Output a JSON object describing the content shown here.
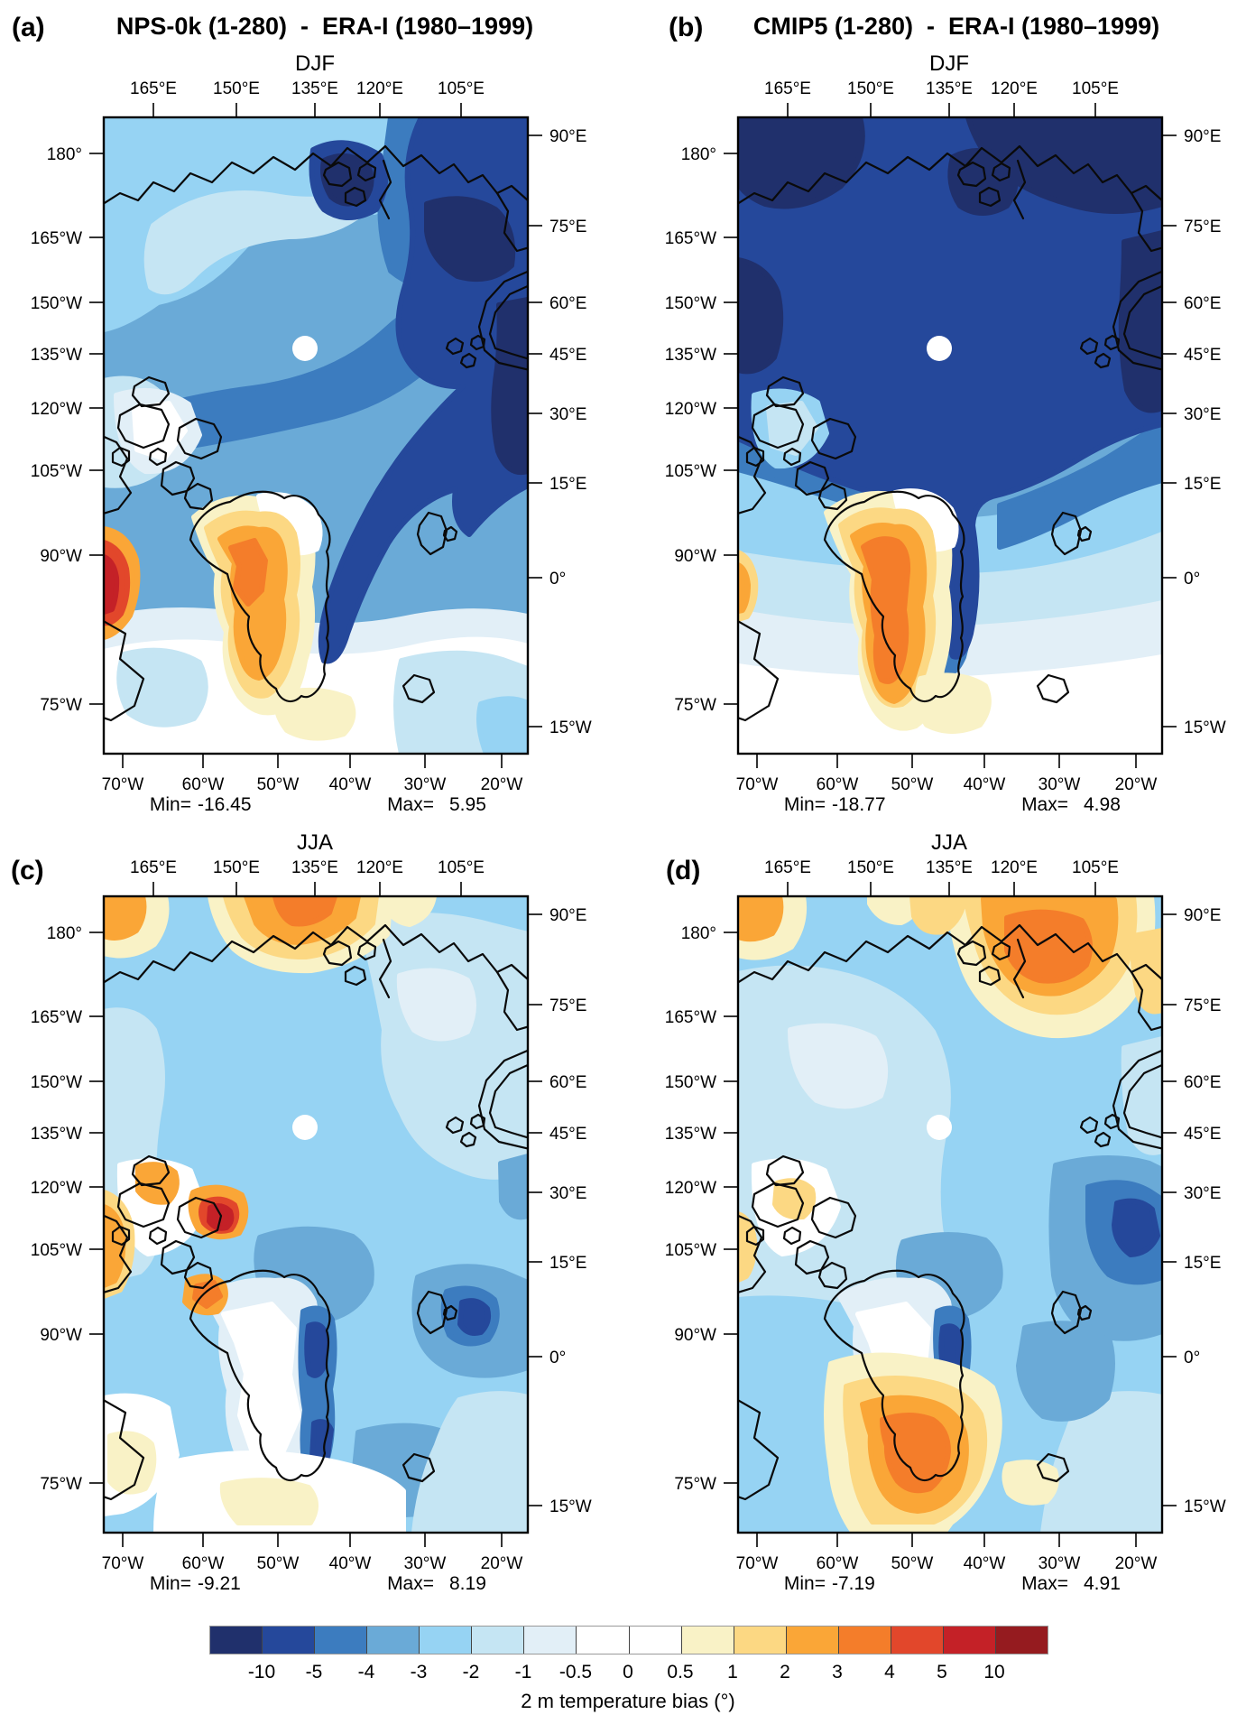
{
  "panels": [
    {
      "id": "a",
      "letter": "(a)",
      "title": "NPS-0k (1-280)  -  ERA-I (1980–1999)",
      "season": "DJF",
      "min_label": "Min=",
      "min_value": "-16.45",
      "max_label": "Max=",
      "max_value": "5.95"
    },
    {
      "id": "b",
      "letter": "(b)",
      "title": "CMIP5 (1-280)  -  ERA-I (1980–1999)",
      "season": "DJF",
      "min_label": "Min=",
      "min_value": "-18.77",
      "max_label": "Max=",
      "max_value": "4.98"
    },
    {
      "id": "c",
      "letter": "(c)",
      "title": "",
      "season": "JJA",
      "min_label": "Min=",
      "min_value": "-9.21",
      "max_label": "Max=",
      "max_value": "8.19"
    },
    {
      "id": "d",
      "letter": "(d)",
      "title": "",
      "season": "JJA",
      "min_label": "Min=",
      "min_value": "-7.19",
      "max_label": "Max=",
      "max_value": "4.91"
    }
  ],
  "axis_labels": {
    "top": [
      "165°E",
      "150°E",
      "135°E",
      "120°E",
      "105°E"
    ],
    "bottom": [
      "70°W",
      "60°W",
      "50°W",
      "40°W",
      "30°W",
      "20°W"
    ],
    "left": [
      "180°",
      "165°W",
      "150°W",
      "135°W",
      "120°W",
      "105°W",
      "90°W",
      "75°W"
    ],
    "right": [
      "90°E",
      "75°E",
      "60°E",
      "45°E",
      "30°E",
      "15°E",
      "0°",
      "15°W"
    ]
  },
  "colorbar": {
    "tick_labels": [
      "-10",
      "-5",
      "-4",
      "-3",
      "-2",
      "-1",
      "-0.5",
      "0",
      "0.5",
      "1",
      "2",
      "3",
      "4",
      "5",
      "10"
    ],
    "colors": [
      "#20306c",
      "#25489b",
      "#3c7cbf",
      "#6aaad7",
      "#96d3f3",
      "#c5e5f3",
      "#e2eff7",
      "#ffffff",
      "#ffffff",
      "#f9f2c6",
      "#fcd883",
      "#faa637",
      "#f47d2a",
      "#e2472b",
      "#c42127",
      "#951b1f"
    ],
    "caption": "2 m temperature bias (°)"
  },
  "chart_data": {
    "type": "heatmap",
    "variable": "2 m temperature bias (°)",
    "projection": "north polar stereographic (rectangular window, white dot marks the pole)",
    "contour_levels": [
      -10,
      -5,
      -4,
      -3,
      -2,
      -1,
      -0.5,
      0,
      0.5,
      1,
      2,
      3,
      4,
      5,
      10
    ],
    "palette": [
      "#20306c",
      "#25489b",
      "#3c7cbf",
      "#6aaad7",
      "#96d3f3",
      "#c5e5f3",
      "#e2eff7",
      "#ffffff",
      "#ffffff",
      "#f9f2c6",
      "#fcd883",
      "#faa637",
      "#f47d2a",
      "#e2472b",
      "#c42127",
      "#951b1f"
    ],
    "legend_position": "bottom",
    "panels": [
      {
        "panel": "(a)",
        "comparison": "NPS-0k (1-280)  -  ERA-I (1980–1999)",
        "season": "DJF",
        "min": -16.45,
        "max": 5.95
      },
      {
        "panel": "(b)",
        "comparison": "CMIP5 (1-280)  -  ERA-I (1980–1999)",
        "season": "DJF",
        "min": -18.77,
        "max": 4.98
      },
      {
        "panel": "(c)",
        "comparison": "NPS-0k (1-280)  -  ERA-I (1980–1999)",
        "season": "JJA",
        "min": -9.21,
        "max": 8.19
      },
      {
        "panel": "(d)",
        "comparison": "CMIP5 (1-280)  -  ERA-I (1980–1999)",
        "season": "JJA",
        "min": -7.19,
        "max": 4.91
      }
    ],
    "axis_tick_labels": {
      "top": [
        "165°E",
        "150°E",
        "135°E",
        "120°E",
        "105°E"
      ],
      "bottom": [
        "70°W",
        "60°W",
        "50°W",
        "40°W",
        "30°W",
        "20°W"
      ],
      "left": [
        "180°",
        "165°W",
        "150°W",
        "135°W",
        "120°W",
        "105°W",
        "90°W",
        "75°W"
      ],
      "right": [
        "90°E",
        "75°E",
        "60°E",
        "45°E",
        "30°E",
        "15°E",
        "0°",
        "15°W"
      ]
    }
  }
}
